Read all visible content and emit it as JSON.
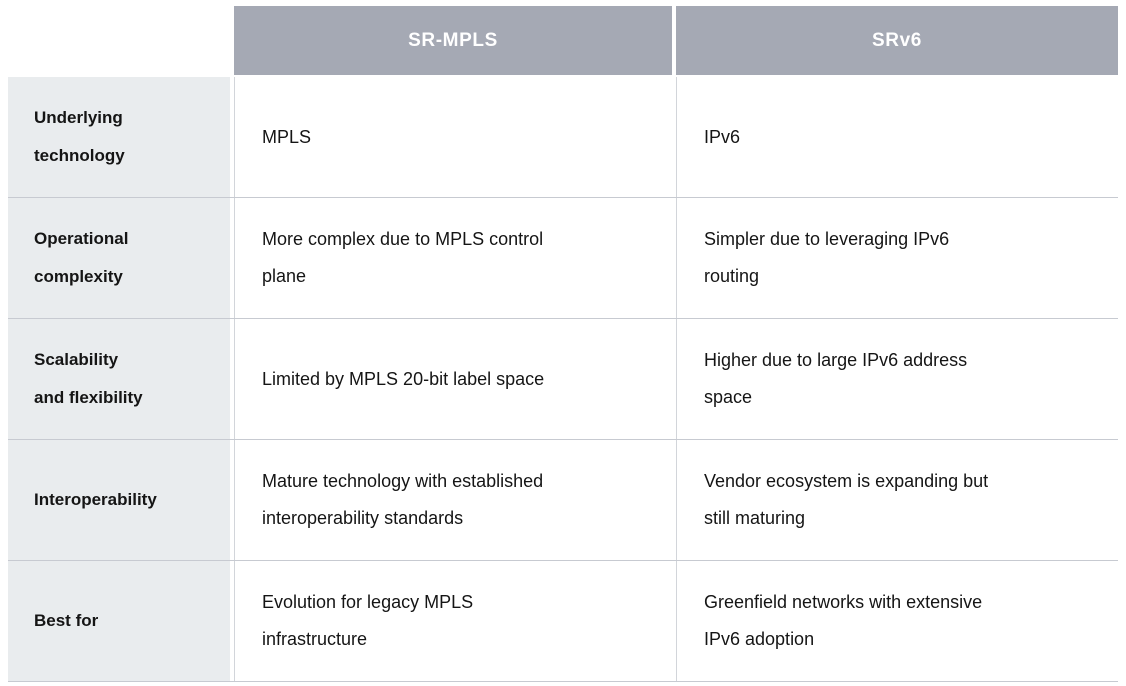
{
  "table": {
    "columns": [
      {
        "label": ""
      },
      {
        "label": "SR-MPLS"
      },
      {
        "label": "SRv6"
      }
    ],
    "rows": [
      {
        "label": "Underlying\ntechnology",
        "sr_mpls": "MPLS",
        "srv6": "IPv6"
      },
      {
        "label": "Operational\ncomplexity",
        "sr_mpls": "More complex due to MPLS control\nplane",
        "srv6": "Simpler due to leveraging IPv6\nrouting"
      },
      {
        "label": "Scalability\nand flexibility",
        "sr_mpls": "Limited by MPLS 20-bit label space",
        "srv6": "Higher due to large IPv6 address\nspace"
      },
      {
        "label": "Interoperability",
        "sr_mpls": "Mature technology with established\ninteroperability standards",
        "srv6": "Vendor ecosystem is expanding but\nstill maturing"
      },
      {
        "label": "Best for",
        "sr_mpls": "Evolution for legacy MPLS\ninfrastructure",
        "srv6": "Greenfield networks with extensive\nIPv6 adoption"
      }
    ]
  },
  "colors": {
    "header_bg": "#a5a9b4",
    "header_text": "#ffffff",
    "label_bg": "#e9ecee",
    "border": "#c7cad1",
    "cell_border": "#d2d5da",
    "text": "#151515"
  }
}
